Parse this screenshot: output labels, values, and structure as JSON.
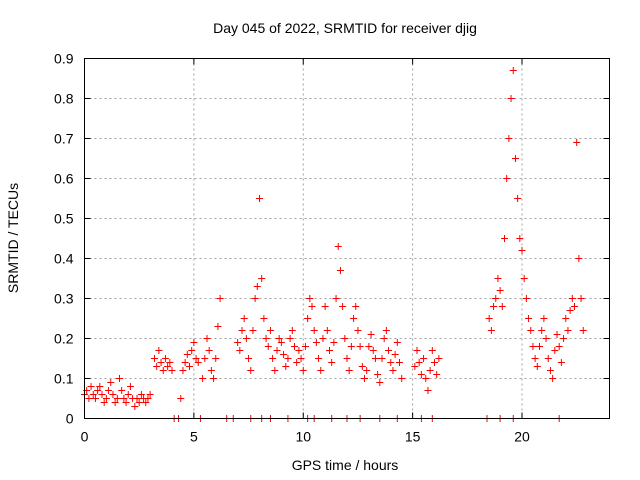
{
  "chart_data": {
    "type": "scatter",
    "title": "Day 045 of 2022, SRMTID for receiver djig",
    "xlabel": "GPS time / hours",
    "ylabel": "SRMTID / TECUs",
    "xlim": [
      0,
      24
    ],
    "ylim": [
      0,
      0.9
    ],
    "xticks": [
      0,
      5,
      10,
      15,
      20
    ],
    "xtick_labels": [
      "0",
      "5",
      "10",
      "15",
      "20"
    ],
    "yticks": [
      0,
      0.1,
      0.2,
      0.3,
      0.4,
      0.5,
      0.6,
      0.7,
      0.8,
      0.9
    ],
    "ytick_labels": [
      "0",
      "0.1",
      "0.2",
      "0.3",
      "0.4",
      "0.5",
      "0.6",
      "0.7",
      "0.8",
      "0.9"
    ],
    "grid": true,
    "marker": "plus",
    "color": "#ff0000",
    "series": [
      {
        "name": "SRMTID",
        "x": [
          0.0,
          0.1,
          0.2,
          0.3,
          0.4,
          0.5,
          0.6,
          0.7,
          0.8,
          0.9,
          1.0,
          1.1,
          1.2,
          1.3,
          1.4,
          1.5,
          1.6,
          1.7,
          1.8,
          1.9,
          2.0,
          2.1,
          2.2,
          2.3,
          2.4,
          2.5,
          2.6,
          2.7,
          2.8,
          2.9,
          3.0,
          3.2,
          3.3,
          3.4,
          3.5,
          3.6,
          3.7,
          3.8,
          3.9,
          4.0,
          4.4,
          4.5,
          4.6,
          4.7,
          4.8,
          4.9,
          5.0,
          5.1,
          5.2,
          5.4,
          5.5,
          5.6,
          5.7,
          5.8,
          5.9,
          6.0,
          6.1,
          6.2,
          7.0,
          7.1,
          7.2,
          7.3,
          7.4,
          7.5,
          7.6,
          7.7,
          7.8,
          7.9,
          8.0,
          8.1,
          8.2,
          8.3,
          8.4,
          8.5,
          8.6,
          8.7,
          8.8,
          8.9,
          9.0,
          9.1,
          9.2,
          9.3,
          9.4,
          9.5,
          9.6,
          9.7,
          9.8,
          9.9,
          10.0,
          10.1,
          10.2,
          10.3,
          10.4,
          10.5,
          10.6,
          10.7,
          10.8,
          10.9,
          11.0,
          11.1,
          11.2,
          11.3,
          11.4,
          11.5,
          11.6,
          11.7,
          11.8,
          11.9,
          12.0,
          12.1,
          12.2,
          12.3,
          12.4,
          12.5,
          12.6,
          12.7,
          12.8,
          12.9,
          13.0,
          13.1,
          13.2,
          13.3,
          13.4,
          13.5,
          13.6,
          13.7,
          13.8,
          13.9,
          14.0,
          14.1,
          14.2,
          14.3,
          14.4,
          14.5,
          15.1,
          15.2,
          15.3,
          15.4,
          15.5,
          15.6,
          15.7,
          15.8,
          15.9,
          16.0,
          16.1,
          16.2,
          18.5,
          18.6,
          18.7,
          18.8,
          18.9,
          19.0,
          19.1,
          19.2,
          19.3,
          19.4,
          19.5,
          19.6,
          19.7,
          19.8,
          19.9,
          20.0,
          20.1,
          20.2,
          20.3,
          20.4,
          20.5,
          20.6,
          20.7,
          20.8,
          20.9,
          21.0,
          21.1,
          21.2,
          21.3,
          21.4,
          21.5,
          21.6,
          21.7,
          21.8,
          21.9,
          22.0,
          22.1,
          22.2,
          22.3,
          22.4,
          22.5,
          22.6,
          22.7,
          22.8,
          4.1,
          4.3,
          5.3,
          6.5,
          6.8,
          7.6,
          8.1,
          8.5,
          9.3,
          10.2,
          10.5,
          11.3,
          12.0,
          12.6,
          13.5,
          14.3,
          15.4,
          15.9,
          18.4,
          19.0,
          19.6,
          21.7
        ],
        "y": [
          0.06,
          0.07,
          0.05,
          0.08,
          0.06,
          0.05,
          0.07,
          0.08,
          0.06,
          0.04,
          0.05,
          0.07,
          0.09,
          0.06,
          0.04,
          0.05,
          0.1,
          0.07,
          0.05,
          0.04,
          0.06,
          0.08,
          0.05,
          0.03,
          0.05,
          0.04,
          0.06,
          0.05,
          0.04,
          0.05,
          0.06,
          0.15,
          0.13,
          0.17,
          0.14,
          0.12,
          0.15,
          0.13,
          0.14,
          0.12,
          0.05,
          0.12,
          0.14,
          0.16,
          0.13,
          0.17,
          0.19,
          0.15,
          0.14,
          0.1,
          0.15,
          0.2,
          0.17,
          0.12,
          0.1,
          0.15,
          0.23,
          0.3,
          0.19,
          0.17,
          0.22,
          0.25,
          0.2,
          0.15,
          0.12,
          0.22,
          0.3,
          0.33,
          0.55,
          0.35,
          0.25,
          0.2,
          0.18,
          0.22,
          0.15,
          0.12,
          0.17,
          0.2,
          0.19,
          0.16,
          0.13,
          0.15,
          0.2,
          0.22,
          0.18,
          0.14,
          0.17,
          0.15,
          0.12,
          0.18,
          0.25,
          0.3,
          0.28,
          0.22,
          0.19,
          0.15,
          0.12,
          0.2,
          0.28,
          0.22,
          0.17,
          0.14,
          0.19,
          0.3,
          0.43,
          0.37,
          0.28,
          0.2,
          0.15,
          0.12,
          0.18,
          0.25,
          0.28,
          0.22,
          0.18,
          0.13,
          0.1,
          0.12,
          0.18,
          0.21,
          0.17,
          0.15,
          0.11,
          0.09,
          0.15,
          0.2,
          0.22,
          0.17,
          0.14,
          0.12,
          0.16,
          0.19,
          0.14,
          0.1,
          0.13,
          0.17,
          0.14,
          0.11,
          0.15,
          0.1,
          0.07,
          0.12,
          0.17,
          0.14,
          0.11,
          0.15,
          0.25,
          0.22,
          0.28,
          0.3,
          0.35,
          0.32,
          0.28,
          0.45,
          0.6,
          0.7,
          0.8,
          0.87,
          0.65,
          0.55,
          0.45,
          0.42,
          0.35,
          0.3,
          0.25,
          0.22,
          0.18,
          0.15,
          0.13,
          0.18,
          0.22,
          0.25,
          0.2,
          0.15,
          0.12,
          0.1,
          0.17,
          0.21,
          0.18,
          0.14,
          0.2,
          0.25,
          0.22,
          0.27,
          0.3,
          0.28,
          0.69,
          0.4,
          0.3,
          0.22,
          0,
          0,
          0,
          0,
          0,
          0,
          0,
          0,
          0,
          0,
          0,
          0,
          0,
          0,
          0,
          0,
          0,
          0,
          0,
          0,
          0,
          0
        ]
      }
    ]
  }
}
